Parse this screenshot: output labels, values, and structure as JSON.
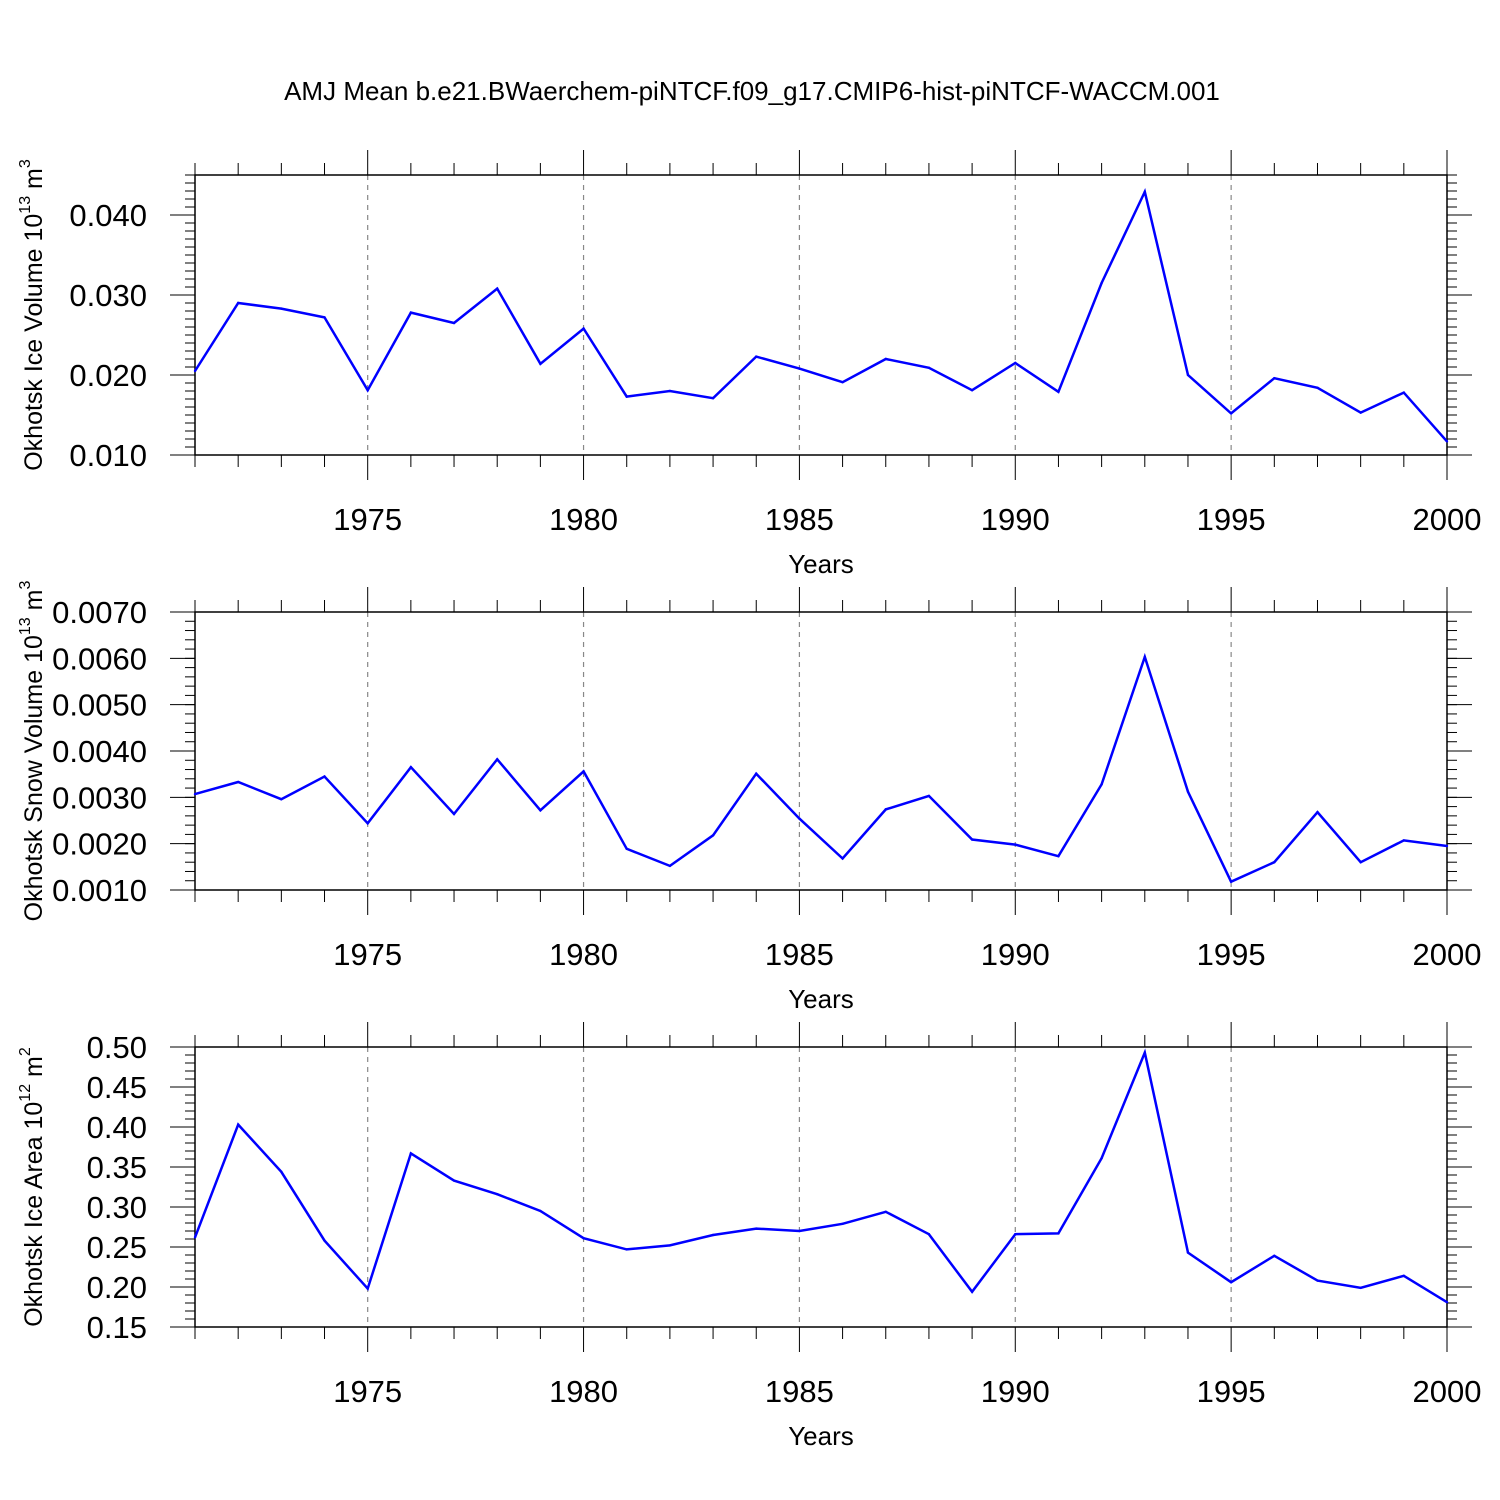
{
  "title": "AMJ Mean b.e21.BWaerchem-piNTCF.f09_g17.CMIP6-hist-piNTCF-WACCM.001",
  "chart_data": [
    {
      "type": "line",
      "ylabel": "Okhotsk Ice Volume 10",
      "ylabel_exp": "13",
      "ylabel_unit": " m",
      "ylabel_unit_exp": "3",
      "xlabel": "Years",
      "xlim": [
        1971,
        2000
      ],
      "ylim": [
        0.01,
        0.045
      ],
      "xticks": [
        1975,
        1980,
        1985,
        1990,
        1995,
        2000
      ],
      "yticks": [
        0.01,
        0.02,
        0.03,
        0.04
      ],
      "ytick_labels": [
        "0.010",
        "0.020",
        "0.030",
        "0.040"
      ],
      "grid": "dashed vertical at major x ticks",
      "line_color": "#0000ff",
      "x": [
        1971,
        1972,
        1973,
        1974,
        1975,
        1976,
        1977,
        1978,
        1979,
        1980,
        1981,
        1982,
        1983,
        1984,
        1985,
        1986,
        1987,
        1988,
        1989,
        1990,
        1991,
        1992,
        1993,
        1994,
        1995,
        1996,
        1997,
        1998,
        1999,
        2000
      ],
      "values": [
        0.0205,
        0.029,
        0.0283,
        0.0272,
        0.0181,
        0.0278,
        0.0265,
        0.0308,
        0.0214,
        0.0258,
        0.0173,
        0.018,
        0.0171,
        0.0223,
        0.0208,
        0.0191,
        0.022,
        0.0209,
        0.0181,
        0.0215,
        0.0179,
        0.0315,
        0.0429,
        0.02,
        0.0152,
        0.0196,
        0.0184,
        0.0153,
        0.0178,
        0.0117
      ]
    },
    {
      "type": "line",
      "ylabel": "Okhotsk Snow Volume 10",
      "ylabel_exp": "13",
      "ylabel_unit": " m",
      "ylabel_unit_exp": "3",
      "xlabel": "Years",
      "xlim": [
        1971,
        2000
      ],
      "ylim": [
        0.001,
        0.007
      ],
      "xticks": [
        1975,
        1980,
        1985,
        1990,
        1995,
        2000
      ],
      "yticks": [
        0.001,
        0.002,
        0.003,
        0.004,
        0.005,
        0.006,
        0.007
      ],
      "ytick_labels": [
        "0.0010",
        "0.0020",
        "0.0030",
        "0.0040",
        "0.0050",
        "0.0060",
        "0.0070"
      ],
      "grid": "dashed vertical at major x ticks",
      "line_color": "#0000ff",
      "x": [
        1971,
        1972,
        1973,
        1974,
        1975,
        1976,
        1977,
        1978,
        1979,
        1980,
        1981,
        1982,
        1983,
        1984,
        1985,
        1986,
        1987,
        1988,
        1989,
        1990,
        1991,
        1992,
        1993,
        1994,
        1995,
        1996,
        1997,
        1998,
        1999,
        2000
      ],
      "values": [
        0.00307,
        0.00333,
        0.00296,
        0.00345,
        0.00244,
        0.00365,
        0.00264,
        0.00382,
        0.00272,
        0.00356,
        0.00189,
        0.00152,
        0.00218,
        0.00351,
        0.00254,
        0.00168,
        0.00274,
        0.00303,
        0.00209,
        0.00198,
        0.00173,
        0.00328,
        0.00603,
        0.00312,
        0.00118,
        0.0016,
        0.00268,
        0.0016,
        0.00207,
        0.00195
      ]
    },
    {
      "type": "line",
      "ylabel": "Okhotsk Ice Area 10",
      "ylabel_exp": "12",
      "ylabel_unit": " m",
      "ylabel_unit_exp": "2",
      "xlabel": "Years",
      "xlim": [
        1971,
        2000
      ],
      "ylim": [
        0.15,
        0.5
      ],
      "xticks": [
        1975,
        1980,
        1985,
        1990,
        1995,
        2000
      ],
      "yticks": [
        0.15,
        0.2,
        0.25,
        0.3,
        0.35,
        0.4,
        0.45,
        0.5
      ],
      "ytick_labels": [
        "0.15",
        "0.20",
        "0.25",
        "0.30",
        "0.35",
        "0.40",
        "0.45",
        "0.50"
      ],
      "grid": "dashed vertical at major x ticks",
      "line_color": "#0000ff",
      "x": [
        1971,
        1972,
        1973,
        1974,
        1975,
        1976,
        1977,
        1978,
        1979,
        1980,
        1981,
        1982,
        1983,
        1984,
        1985,
        1986,
        1987,
        1988,
        1989,
        1990,
        1991,
        1992,
        1993,
        1994,
        1995,
        1996,
        1997,
        1998,
        1999,
        2000
      ],
      "values": [
        0.262,
        0.403,
        0.344,
        0.258,
        0.198,
        0.367,
        0.333,
        0.316,
        0.295,
        0.261,
        0.247,
        0.252,
        0.265,
        0.273,
        0.27,
        0.279,
        0.294,
        0.266,
        0.194,
        0.266,
        0.267,
        0.361,
        0.493,
        0.243,
        0.206,
        0.239,
        0.208,
        0.199,
        0.214,
        0.181
      ]
    }
  ]
}
